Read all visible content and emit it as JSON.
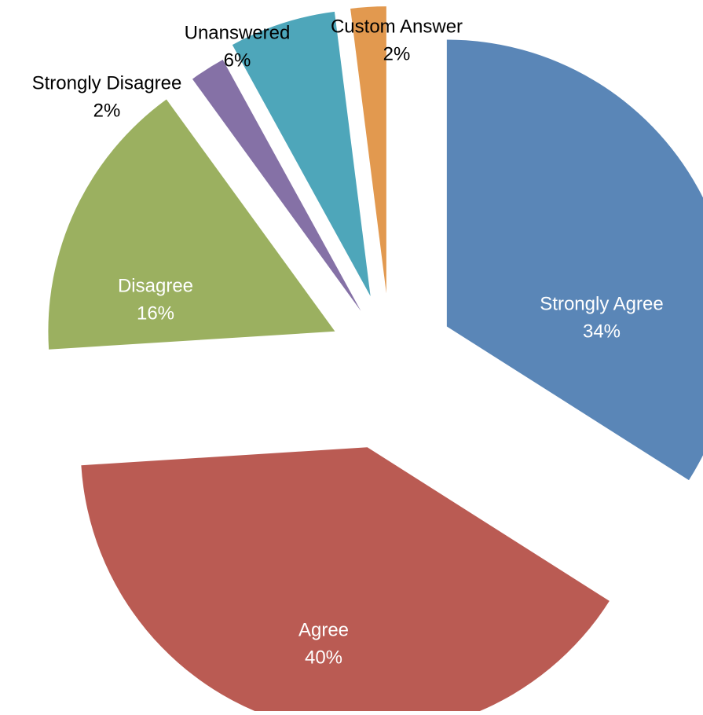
{
  "chart_data": {
    "type": "pie",
    "title": "",
    "slices": [
      {
        "label": "Strongly Agree",
        "value": 34,
        "percent_label": "34%",
        "color": "#5A86B7",
        "label_inside": true
      },
      {
        "label": "Agree",
        "value": 40,
        "percent_label": "40%",
        "color": "#BA5B53",
        "label_inside": true
      },
      {
        "label": "Disagree",
        "value": 16,
        "percent_label": "16%",
        "color": "#9BB060",
        "label_inside": true
      },
      {
        "label": "Strongly Disagree",
        "value": 2,
        "percent_label": "2%",
        "color": "#8571A6",
        "label_inside": false
      },
      {
        "label": "Unanswered",
        "value": 6,
        "percent_label": "6%",
        "color": "#4EA6BA",
        "label_inside": false
      },
      {
        "label": "Custom Answer",
        "value": 2,
        "percent_label": "2%",
        "color": "#E2994F",
        "label_inside": false
      }
    ],
    "exploded": true,
    "start_direction": "top",
    "direction": "clockwise",
    "legend": "none",
    "inside_label_color": "#ffffff",
    "outside_label_color": "#000000"
  }
}
